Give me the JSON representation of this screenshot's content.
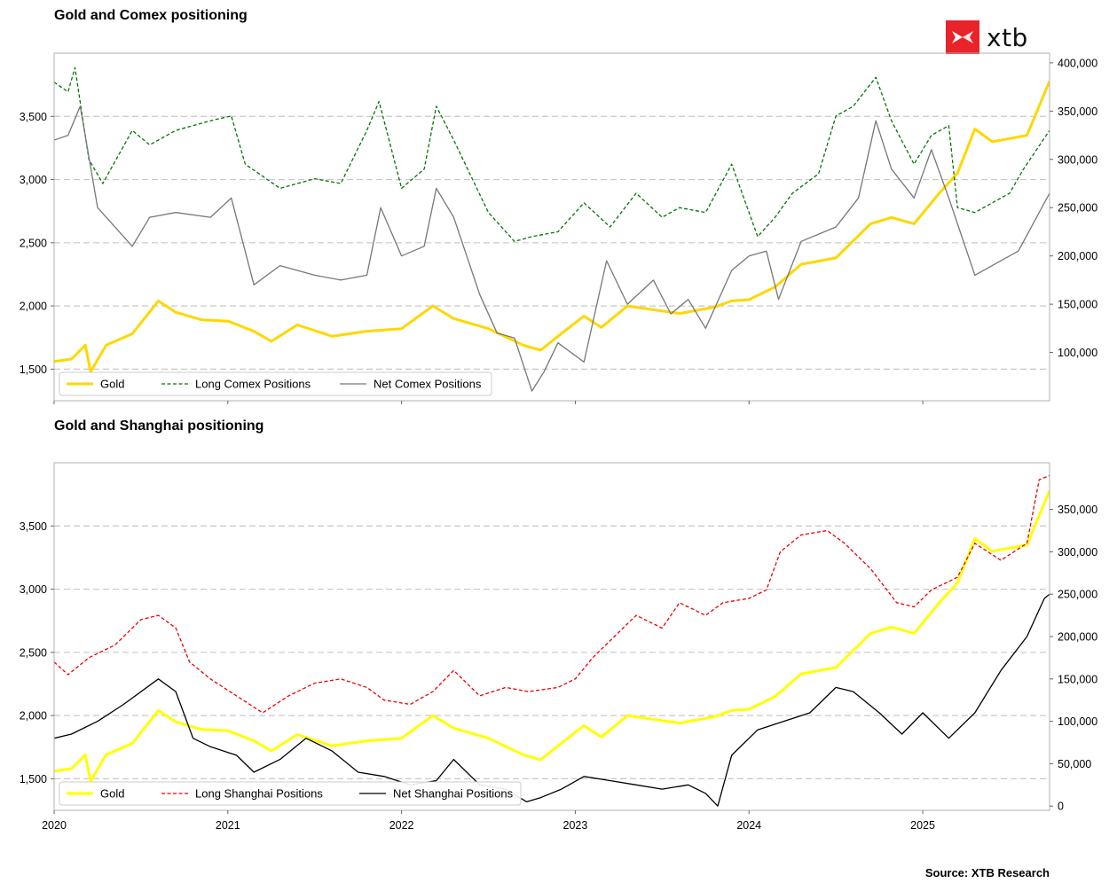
{
  "logo": {
    "text": "xtb",
    "color": "#e8232a"
  },
  "source": "Source: XTB Research",
  "chart_data": [
    {
      "type": "line",
      "title": "Gold and Comex positioning",
      "x_axis": {
        "range": [
          2020.0,
          2025.73
        ],
        "ticks": [
          2020,
          2021,
          2022,
          2023,
          2024,
          2025
        ],
        "tick_labels_shown": false
      },
      "left_axis": {
        "range": [
          1250,
          4000
        ],
        "ticks": [
          1500,
          2000,
          2500,
          3000,
          3500
        ],
        "tick_labels": [
          "1,500",
          "2,000",
          "2,500",
          "3,000",
          "3,500"
        ]
      },
      "right_axis": {
        "range": [
          50000,
          410000
        ],
        "ticks": [
          100000,
          150000,
          200000,
          250000,
          300000,
          350000,
          400000
        ],
        "tick_labels": [
          "100,000",
          "150,000",
          "200,000",
          "250,000",
          "300,000",
          "350,000",
          "400,000"
        ]
      },
      "grid": "horizontal dashed at left-axis ticks",
      "legend_position": "bottom-left",
      "series": [
        {
          "name": "Gold",
          "axis": "left",
          "color": "#ffd700",
          "style": "solid-thick",
          "x": [
            2020.0,
            2020.1,
            2020.18,
            2020.21,
            2020.3,
            2020.45,
            2020.6,
            2020.7,
            2020.85,
            2021.0,
            2021.15,
            2021.25,
            2021.4,
            2021.6,
            2021.8,
            2022.0,
            2022.18,
            2022.3,
            2022.5,
            2022.7,
            2022.8,
            2022.9,
            2023.05,
            2023.15,
            2023.3,
            2023.5,
            2023.6,
            2023.8,
            2023.9,
            2024.0,
            2024.15,
            2024.3,
            2024.5,
            2024.7,
            2024.82,
            2024.95,
            2025.1,
            2025.2,
            2025.3,
            2025.4,
            2025.6,
            2025.73
          ],
          "values": [
            1560,
            1580,
            1690,
            1480,
            1690,
            1780,
            2040,
            1950,
            1890,
            1880,
            1800,
            1720,
            1850,
            1760,
            1800,
            1820,
            2000,
            1900,
            1820,
            1690,
            1650,
            1760,
            1920,
            1830,
            2000,
            1960,
            1940,
            1990,
            2040,
            2050,
            2150,
            2330,
            2380,
            2650,
            2700,
            2650,
            2900,
            3050,
            3400,
            3300,
            3350,
            3780
          ]
        },
        {
          "name": "Long Comex Positions",
          "axis": "right",
          "color": "#007700",
          "style": "dashed",
          "x": [
            2020.0,
            2020.08,
            2020.12,
            2020.2,
            2020.28,
            2020.45,
            2020.55,
            2020.7,
            2020.9,
            2021.02,
            2021.1,
            2021.3,
            2021.5,
            2021.65,
            2021.8,
            2021.87,
            2022.0,
            2022.13,
            2022.2,
            2022.3,
            2022.5,
            2022.65,
            2022.75,
            2022.9,
            2023.05,
            2023.2,
            2023.35,
            2023.5,
            2023.6,
            2023.75,
            2023.9,
            2024.05,
            2024.15,
            2024.25,
            2024.4,
            2024.5,
            2024.6,
            2024.73,
            2024.82,
            2024.95,
            2025.05,
            2025.15,
            2025.2,
            2025.3,
            2025.5,
            2025.58,
            2025.73
          ],
          "values": [
            380000,
            370000,
            395000,
            300000,
            275000,
            330000,
            315000,
            330000,
            340000,
            345000,
            295000,
            270000,
            280000,
            275000,
            330000,
            360000,
            270000,
            290000,
            355000,
            320000,
            245000,
            215000,
            220000,
            225000,
            255000,
            230000,
            265000,
            240000,
            250000,
            245000,
            295000,
            220000,
            240000,
            265000,
            285000,
            345000,
            355000,
            385000,
            340000,
            295000,
            325000,
            335000,
            250000,
            245000,
            265000,
            290000,
            330000
          ]
        },
        {
          "name": "Net Comex Positions",
          "axis": "right",
          "color": "#777777",
          "style": "solid",
          "x": [
            2020.0,
            2020.08,
            2020.15,
            2020.25,
            2020.45,
            2020.55,
            2020.7,
            2020.9,
            2021.02,
            2021.15,
            2021.3,
            2021.5,
            2021.65,
            2021.8,
            2021.88,
            2022.0,
            2022.13,
            2022.2,
            2022.3,
            2022.45,
            2022.55,
            2022.65,
            2022.75,
            2022.82,
            2022.9,
            2023.05,
            2023.18,
            2023.3,
            2023.45,
            2023.55,
            2023.65,
            2023.75,
            2023.9,
            2024.0,
            2024.1,
            2024.17,
            2024.3,
            2024.5,
            2024.63,
            2024.73,
            2024.82,
            2024.95,
            2025.05,
            2025.15,
            2025.3,
            2025.45,
            2025.55,
            2025.73
          ],
          "values": [
            320000,
            325000,
            355000,
            250000,
            210000,
            240000,
            245000,
            240000,
            260000,
            170000,
            190000,
            180000,
            175000,
            180000,
            250000,
            200000,
            210000,
            270000,
            240000,
            160000,
            120000,
            115000,
            60000,
            80000,
            110000,
            90000,
            195000,
            150000,
            175000,
            140000,
            155000,
            125000,
            185000,
            200000,
            205000,
            155000,
            215000,
            230000,
            260000,
            340000,
            290000,
            260000,
            310000,
            260000,
            180000,
            195000,
            205000,
            265000
          ]
        }
      ]
    },
    {
      "type": "line",
      "title": "Gold and Shanghai positioning",
      "x_axis": {
        "range": [
          2020.0,
          2025.73
        ],
        "ticks": [
          2020,
          2021,
          2022,
          2023,
          2024,
          2025
        ],
        "tick_labels": [
          "2020",
          "2021",
          "2022",
          "2023",
          "2024",
          "2025"
        ]
      },
      "left_axis": {
        "range": [
          1250,
          4000
        ],
        "ticks": [
          1500,
          2000,
          2500,
          3000,
          3500
        ],
        "tick_labels": [
          "1,500",
          "2,000",
          "2,500",
          "3,000",
          "3,500"
        ]
      },
      "right_axis": {
        "range": [
          -5000,
          405000
        ],
        "ticks": [
          0,
          50000,
          100000,
          150000,
          200000,
          250000,
          300000,
          350000
        ],
        "tick_labels": [
          "0",
          "50,000",
          "100,000",
          "150,000",
          "200,000",
          "250,000",
          "300,000",
          "350,000"
        ]
      },
      "grid": "horizontal dashed at left-axis ticks",
      "legend_position": "bottom-left",
      "series": [
        {
          "name": "Gold",
          "axis": "left",
          "color": "#ffff00",
          "style": "solid-thick",
          "x": [
            2020.0,
            2020.1,
            2020.18,
            2020.21,
            2020.3,
            2020.45,
            2020.6,
            2020.7,
            2020.85,
            2021.0,
            2021.15,
            2021.25,
            2021.4,
            2021.6,
            2021.8,
            2022.0,
            2022.18,
            2022.3,
            2022.5,
            2022.7,
            2022.8,
            2022.9,
            2023.05,
            2023.15,
            2023.3,
            2023.5,
            2023.6,
            2023.8,
            2023.9,
            2024.0,
            2024.15,
            2024.3,
            2024.5,
            2024.7,
            2024.82,
            2024.95,
            2025.1,
            2025.2,
            2025.3,
            2025.4,
            2025.6,
            2025.73
          ],
          "values": [
            1560,
            1580,
            1690,
            1480,
            1690,
            1780,
            2040,
            1950,
            1890,
            1880,
            1800,
            1720,
            1850,
            1760,
            1800,
            1820,
            2000,
            1900,
            1820,
            1690,
            1650,
            1760,
            1920,
            1830,
            2000,
            1960,
            1940,
            1990,
            2040,
            2050,
            2150,
            2330,
            2380,
            2650,
            2700,
            2650,
            2900,
            3050,
            3400,
            3300,
            3350,
            3780
          ]
        },
        {
          "name": "Long Shanghai Positions",
          "axis": "right",
          "color": "#ee0000",
          "style": "dashed",
          "x": [
            2020.0,
            2020.08,
            2020.2,
            2020.35,
            2020.5,
            2020.6,
            2020.7,
            2020.78,
            2020.9,
            2021.05,
            2021.2,
            2021.35,
            2021.5,
            2021.65,
            2021.8,
            2021.9,
            2022.05,
            2022.18,
            2022.3,
            2022.45,
            2022.6,
            2022.73,
            2022.9,
            2023.0,
            2023.1,
            2023.25,
            2023.35,
            2023.5,
            2023.6,
            2023.75,
            2023.85,
            2024.0,
            2024.1,
            2024.18,
            2024.3,
            2024.45,
            2024.55,
            2024.7,
            2024.85,
            2024.95,
            2025.05,
            2025.2,
            2025.3,
            2025.45,
            2025.6,
            2025.67,
            2025.73
          ],
          "values": [
            170000,
            155000,
            175000,
            190000,
            220000,
            225000,
            210000,
            170000,
            150000,
            130000,
            110000,
            130000,
            145000,
            150000,
            140000,
            125000,
            120000,
            135000,
            160000,
            130000,
            140000,
            135000,
            140000,
            150000,
            175000,
            205000,
            225000,
            210000,
            240000,
            225000,
            240000,
            245000,
            255000,
            300000,
            320000,
            325000,
            310000,
            280000,
            240000,
            235000,
            255000,
            270000,
            310000,
            290000,
            310000,
            385000,
            390000
          ]
        },
        {
          "name": "Net Shanghai Positions",
          "axis": "right",
          "color": "#000000",
          "style": "solid",
          "x": [
            2020.0,
            2020.1,
            2020.25,
            2020.4,
            2020.6,
            2020.7,
            2020.8,
            2020.9,
            2021.05,
            2021.15,
            2021.3,
            2021.45,
            2021.6,
            2021.75,
            2021.9,
            2022.05,
            2022.2,
            2022.3,
            2022.45,
            2022.6,
            2022.72,
            2022.8,
            2022.92,
            2023.05,
            2023.2,
            2023.35,
            2023.5,
            2023.65,
            2023.75,
            2023.82,
            2023.9,
            2024.05,
            2024.2,
            2024.35,
            2024.5,
            2024.6,
            2024.75,
            2024.88,
            2025.0,
            2025.15,
            2025.3,
            2025.45,
            2025.6,
            2025.7,
            2025.73
          ],
          "values": [
            80000,
            85000,
            100000,
            120000,
            150000,
            135000,
            80000,
            70000,
            60000,
            40000,
            55000,
            80000,
            65000,
            40000,
            35000,
            25000,
            30000,
            55000,
            25000,
            20000,
            5000,
            10000,
            20000,
            35000,
            30000,
            25000,
            20000,
            25000,
            15000,
            0,
            60000,
            90000,
            100000,
            110000,
            140000,
            135000,
            110000,
            85000,
            110000,
            80000,
            110000,
            160000,
            200000,
            245000,
            250000
          ]
        }
      ]
    }
  ]
}
